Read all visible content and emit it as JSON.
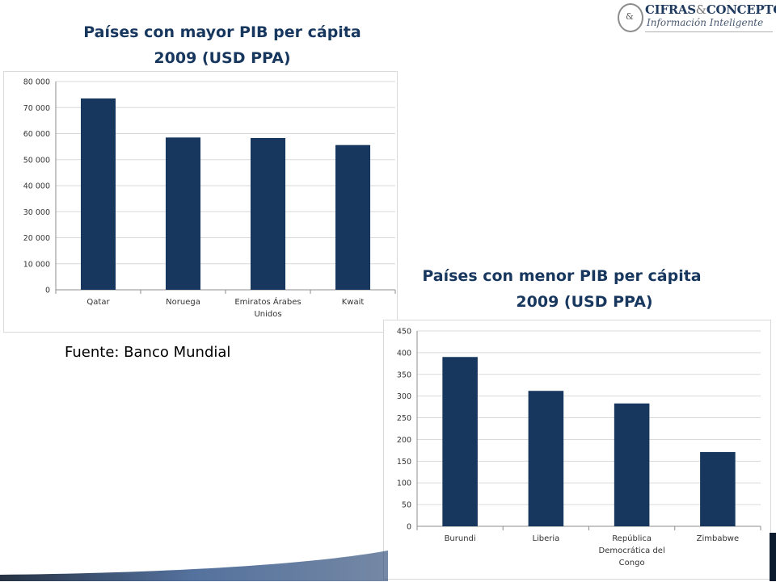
{
  "logo": {
    "name_a": "CIFRAS",
    "amp": "&",
    "name_b": "CONCEPTOS",
    "tagline": "Información Inteligente",
    "mark": "&"
  },
  "source": "Fuente: Banco Mundial",
  "colors": {
    "bar": "#17375e",
    "title": "#17375e",
    "grid": "#d9d9d9",
    "axis": "#8c8c8c"
  },
  "chart_data": [
    {
      "type": "bar",
      "title_line1": "Países con mayor PIB per cápita",
      "title_line2": "2009 (USD PPA)",
      "categories": [
        [
          "Qatar"
        ],
        [
          "Noruega"
        ],
        [
          "Emiratos Árabes",
          "Unidos"
        ],
        [
          "Kwait"
        ]
      ],
      "values": [
        73500,
        58500,
        58300,
        55600
      ],
      "ylim": [
        0,
        80000
      ],
      "yticks": [
        0,
        10000,
        20000,
        30000,
        40000,
        50000,
        60000,
        70000,
        80000
      ],
      "ytick_labels": [
        "0",
        "10 000",
        "20 000",
        "30 000",
        "40 000",
        "50 000",
        "60 000",
        "70 000",
        "80 000"
      ],
      "grid": true,
      "legend": "none"
    },
    {
      "type": "bar",
      "title_line1": "Países con menor PIB per cápita",
      "title_line2": "2009 (USD PPA)",
      "categories": [
        [
          "Burundi"
        ],
        [
          "Liberia"
        ],
        [
          "República",
          "Democrática del",
          "Congo"
        ],
        [
          "Zimbabwe"
        ]
      ],
      "values": [
        390,
        312,
        283,
        171
      ],
      "ylim": [
        0,
        450
      ],
      "yticks": [
        0,
        50,
        100,
        150,
        200,
        250,
        300,
        350,
        400,
        450
      ],
      "ytick_labels": [
        "0",
        "50",
        "100",
        "150",
        "200",
        "250",
        "300",
        "350",
        "400",
        "450"
      ],
      "grid": true,
      "legend": "none"
    }
  ]
}
